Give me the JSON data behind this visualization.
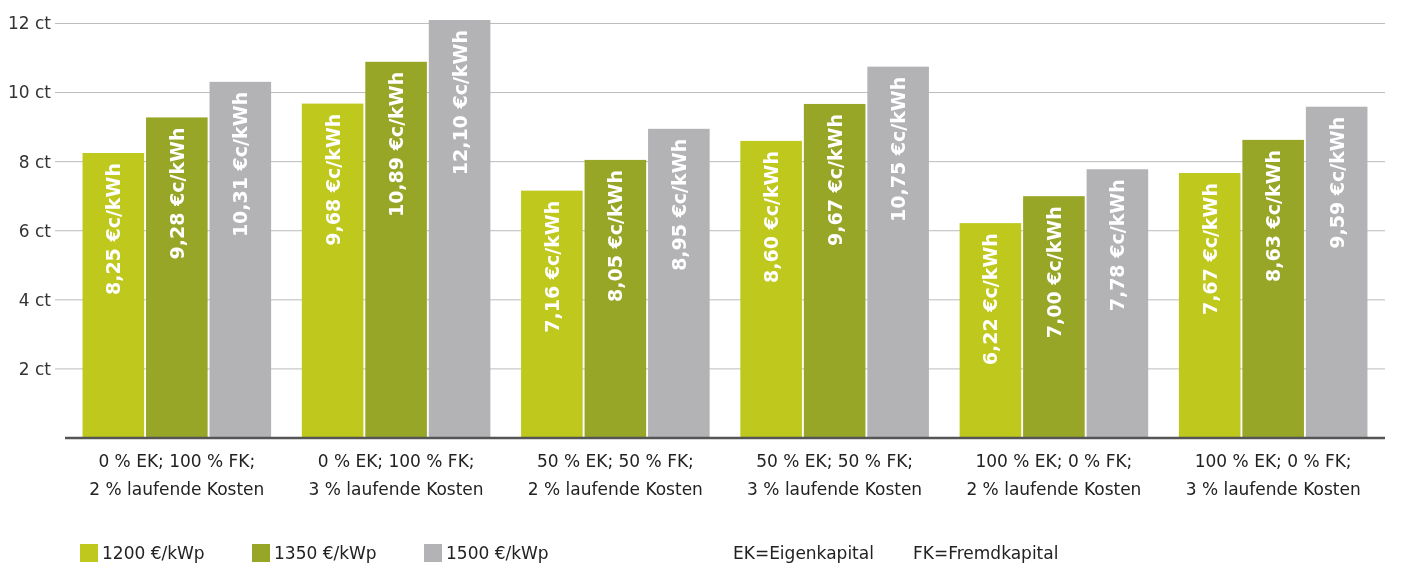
{
  "chart_data": {
    "type": "bar",
    "categories": [
      "0 % EK; 100 % FK;\n2 % laufende Kosten",
      "0 % EK; 100 % FK;\n3 % laufende Kosten",
      "50 % EK; 50 % FK;\n2 % laufende Kosten",
      "50 % EK; 50 % FK;\n3 % laufende Kosten",
      "100 % EK; 0 % FK;\n2 % laufende Kosten",
      "100 % EK; 0 % FK;\n3 % laufende Kosten"
    ],
    "series": [
      {
        "name": "1200 €/kWp",
        "color": "#bfc81c",
        "values": [
          8.25,
          9.68,
          7.16,
          8.6,
          6.22,
          7.67
        ],
        "value_labels": [
          "8,25 €c/kWh",
          "9,68 €c/kWh",
          "7,16 €c/kWh",
          "8,60 €c/kWh",
          "6,22 €c/kWh",
          "7,67 €c/kWh"
        ]
      },
      {
        "name": "1350 €/kWp",
        "color": "#97a626",
        "values": [
          9.28,
          10.89,
          8.05,
          9.67,
          7.0,
          8.63
        ],
        "value_labels": [
          "9,28 €c/kWh",
          "10,89 €c/kWh",
          "8,05 €c/kWh",
          "9,67 €c/kWh",
          "7,00 €c/kWh",
          "8,63 €c/kWh"
        ]
      },
      {
        "name": "1500 €/kWp",
        "color": "#b3b3b6",
        "values": [
          10.31,
          12.1,
          8.95,
          10.75,
          7.78,
          9.59
        ],
        "value_labels": [
          "10,31 €c/kWh",
          "12,10 €c/kWh",
          "8,95 €c/kWh",
          "10,75 €c/kWh",
          "7,78 €c/kWh",
          "9,59 €c/kWh"
        ]
      }
    ],
    "ylim": [
      0,
      12.1
    ],
    "yticks": [
      {
        "value": 2,
        "label": "2 ct"
      },
      {
        "value": 4,
        "label": "4 ct"
      },
      {
        "value": 6,
        "label": "6 ct"
      },
      {
        "value": 8,
        "label": "8 ct"
      },
      {
        "value": 10,
        "label": "10 ct"
      },
      {
        "value": 12,
        "label": "12 ct"
      }
    ],
    "grid": "y",
    "legend": "bottom left",
    "annotations": [
      "EK=Eigenkapital",
      "FK=Fremdkapital"
    ]
  }
}
